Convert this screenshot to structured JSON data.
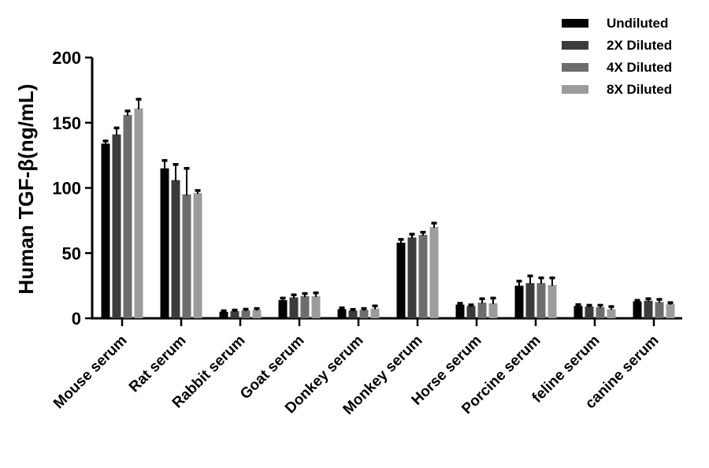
{
  "chart_data": {
    "type": "bar",
    "title": "",
    "xlabel": "",
    "ylabel": "Human TGF-β(ng/mL)",
    "ylim": [
      0,
      200
    ],
    "yticks": [
      0,
      50,
      100,
      150,
      200
    ],
    "grid": false,
    "legend_position": "top-right",
    "categories": [
      "Mouse serum",
      "Rat serum",
      "Rabbit serum",
      "Goat serum",
      "Donkey serum",
      "Monkey serum",
      "Horse serum",
      "Porcine serum",
      "feline serum",
      "canine serum"
    ],
    "series": [
      {
        "name": "Undiluted",
        "color": "#000000",
        "values": [
          134,
          115,
          5,
          14,
          7,
          58,
          10.5,
          25,
          9.5,
          13
        ],
        "errors": [
          2,
          6,
          0.8,
          1.5,
          1,
          2.5,
          1,
          3.5,
          1,
          0.8
        ]
      },
      {
        "name": "2X Diluted",
        "color": "#3b3b3b",
        "values": [
          141,
          106,
          5.5,
          16,
          6,
          62,
          9.5,
          27,
          9,
          13.5
        ],
        "errors": [
          5,
          12,
          0.8,
          2,
          0.8,
          2.5,
          0.8,
          5.5,
          1,
          1.5
        ]
      },
      {
        "name": "4X Diluted",
        "color": "#6d6d6d",
        "values": [
          156,
          95,
          6,
          17,
          6.5,
          64,
          12,
          27,
          8.5,
          12.5
        ],
        "errors": [
          3,
          20,
          1,
          2,
          1,
          2,
          3,
          4,
          1.5,
          2
        ]
      },
      {
        "name": "8X Diluted",
        "color": "#9c9c9c",
        "values": [
          161,
          96,
          6.5,
          17,
          7.5,
          70,
          11.5,
          25.5,
          7,
          11
        ],
        "errors": [
          7,
          2,
          1,
          2.5,
          2,
          3,
          4,
          5.5,
          2,
          1
        ]
      }
    ]
  }
}
